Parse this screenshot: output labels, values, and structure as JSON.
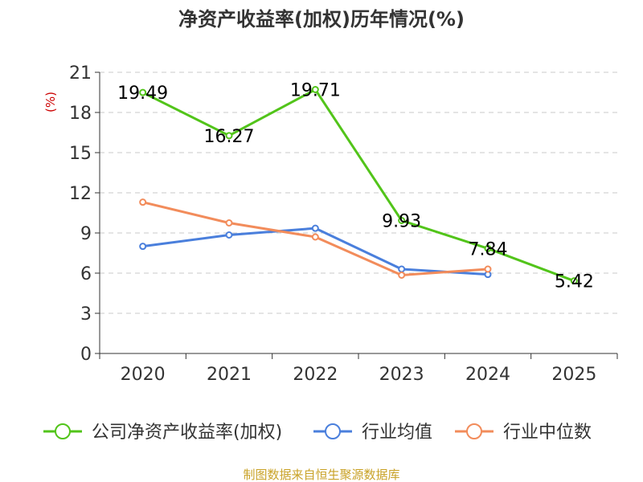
{
  "chart_data": {
    "type": "line",
    "title": "净资产收益率(加权)历年情况(%)",
    "ylabel": "(%)",
    "categories": [
      "2020",
      "2021",
      "2022",
      "2023",
      "2024",
      "2025"
    ],
    "ylim": [
      0,
      21
    ],
    "yticks": [
      0,
      3,
      6,
      9,
      12,
      15,
      18,
      21
    ],
    "grid": true,
    "legend_position": "bottom",
    "series": [
      {
        "name": "公司净资产收益率(加权)",
        "color": "#52c41a",
        "values": [
          19.49,
          16.27,
          19.71,
          9.93,
          7.84,
          5.42
        ],
        "labels": [
          "19.49",
          "16.27",
          "19.71",
          "9.93",
          "7.84",
          "5.42"
        ],
        "show_labels": true
      },
      {
        "name": "行业均值",
        "color": "#4a7fdc",
        "values": [
          8.0,
          8.85,
          9.35,
          6.3,
          5.9,
          null
        ],
        "show_labels": false
      },
      {
        "name": "行业中位数",
        "color": "#f28c5b",
        "values": [
          11.3,
          9.75,
          8.7,
          5.85,
          6.3,
          null
        ],
        "show_labels": false
      }
    ],
    "source": "制图数据来自恒生聚源数据库"
  }
}
